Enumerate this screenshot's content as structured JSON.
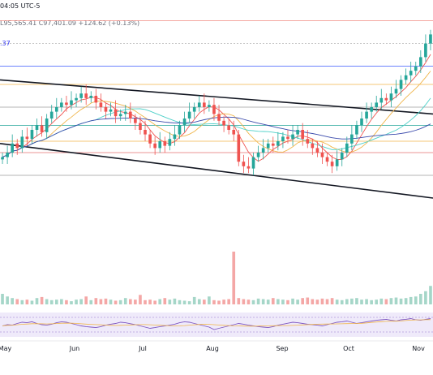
{
  "header": {
    "time_label": "04:05 UTC-5",
    "ohlc_label": "L95,565.41  C97,401.09  +124.62 (+0.13%)",
    "indicator_value": ".37"
  },
  "chart_data": {
    "type": "candlestick",
    "title": "",
    "x_tick_labels": [
      "May",
      "Jun",
      "Jul",
      "Aug",
      "Sep",
      "Oct",
      "Nov"
    ],
    "grid": false,
    "panes": [
      "price",
      "volume",
      "rsi"
    ],
    "price_range_relative": [
      0,
      100
    ],
    "candles_close_relative": [
      38,
      40,
      44,
      42,
      47,
      46,
      50,
      52,
      49,
      55,
      58,
      60,
      62,
      61,
      63,
      64,
      66,
      64,
      65,
      62,
      60,
      58,
      59,
      56,
      57,
      58,
      55,
      53,
      50,
      48,
      44,
      42,
      45,
      43,
      46,
      48,
      52,
      55,
      58,
      60,
      62,
      60,
      61,
      57,
      54,
      52,
      50,
      48,
      36,
      34,
      33,
      38,
      40,
      42,
      44,
      43,
      45,
      47,
      46,
      48,
      50,
      46,
      44,
      42,
      40,
      38,
      36,
      34,
      37,
      40,
      44,
      48,
      52,
      55,
      58,
      60,
      62,
      64,
      63,
      66,
      68,
      72,
      74,
      76,
      78,
      82,
      88,
      92
    ],
    "horizontal_levels_relative": [
      98,
      88,
      78,
      70,
      60,
      52,
      45,
      40,
      30
    ],
    "channel": {
      "upper": [
        72,
        57
      ],
      "lower": [
        44,
        20
      ]
    },
    "volume_relative": [
      20,
      15,
      12,
      10,
      8,
      9,
      7,
      12,
      14,
      10,
      8,
      9,
      10,
      8,
      6,
      9,
      10,
      15,
      8,
      12,
      10,
      11,
      9,
      7,
      8,
      12,
      10,
      9,
      18,
      8,
      9,
      7,
      10,
      12,
      9,
      11,
      8,
      7,
      6,
      14,
      10,
      9,
      15,
      8,
      7,
      9,
      10,
      100,
      12,
      10,
      9,
      8,
      11,
      10,
      9,
      12,
      10,
      9,
      8,
      11,
      9,
      12,
      13,
      10,
      9,
      11,
      10,
      12,
      9,
      8,
      10,
      11,
      12,
      9,
      10,
      8,
      9,
      11,
      10,
      12,
      13,
      11,
      12,
      14,
      15,
      20,
      25,
      35
    ],
    "rsi_relative": [
      45,
      50,
      48,
      55,
      60,
      58,
      62,
      55,
      50,
      48,
      52,
      58,
      62,
      60,
      55,
      50,
      45,
      42,
      40,
      38,
      42,
      48,
      52,
      55,
      60,
      58,
      54,
      50,
      45,
      40,
      35,
      38,
      42,
      45,
      48,
      52,
      58,
      62,
      60,
      55,
      50,
      45,
      40,
      30,
      35,
      40,
      45,
      50,
      55,
      52,
      48,
      45,
      42,
      40,
      38,
      42,
      48,
      52,
      56,
      60,
      58,
      55,
      52,
      50,
      48,
      45,
      50,
      55,
      60,
      62,
      65,
      60,
      55,
      58,
      62,
      65,
      68,
      70,
      72,
      68,
      65,
      70,
      72,
      75,
      70,
      68,
      72,
      75
    ]
  }
}
